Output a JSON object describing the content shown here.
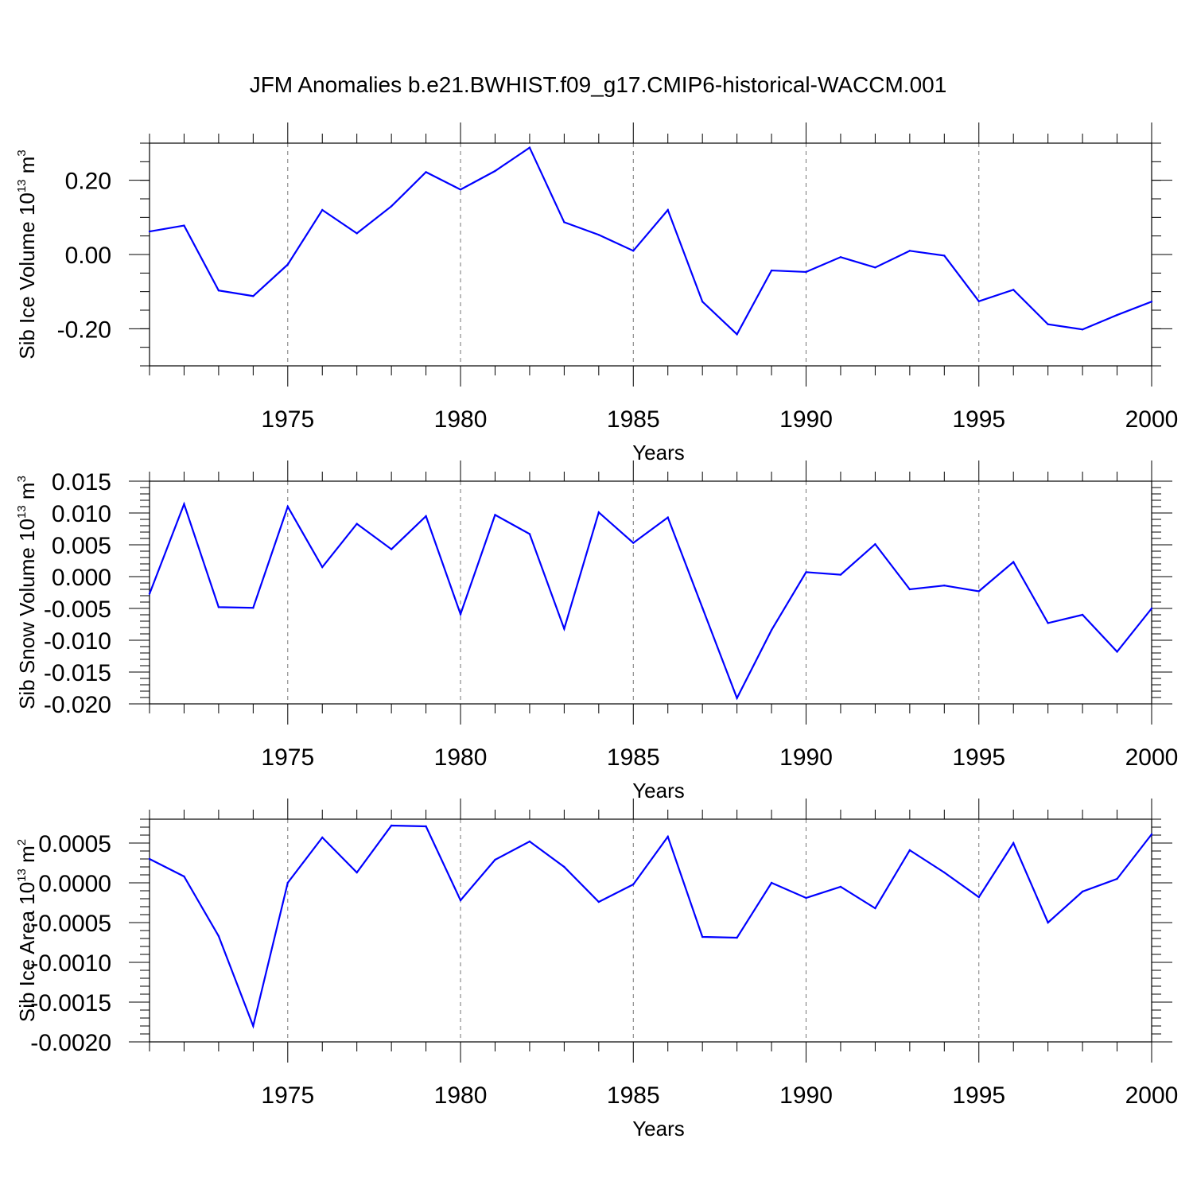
{
  "chart_data": {
    "type": "line",
    "title": "JFM Anomalies b.e21.BWHIST.f09_g17.CMIP6-historical-WACCM.001",
    "line_color": "#0000ff",
    "panels": [
      {
        "id": "ice-volume",
        "type": "line",
        "ylabel_main": "Sib Ice Volume 10",
        "ylabel_sup1": "13",
        "ylabel_mid": " m",
        "ylabel_sup2": "3",
        "xlabel": "Years",
        "xlim": [
          1971,
          2000
        ],
        "ylim": [
          -0.3,
          0.3
        ],
        "yticks": [
          -0.2,
          0.0,
          0.2
        ],
        "ytick_labels": [
          "-0.20",
          "0.00",
          "0.20"
        ],
        "ytick_minor_step": 0.05,
        "xticks": [
          1975,
          1980,
          1985,
          1990,
          1995,
          2000
        ],
        "xtick_labels": [
          "1975",
          "1980",
          "1985",
          "1990",
          "1995",
          "2000"
        ],
        "x": [
          1971,
          1972,
          1973,
          1974,
          1975,
          1976,
          1977,
          1978,
          1979,
          1980,
          1981,
          1982,
          1983,
          1984,
          1985,
          1986,
          1987,
          1988,
          1989,
          1990,
          1991,
          1992,
          1993,
          1994,
          1995,
          1996,
          1997,
          1998,
          1999,
          2000
        ],
        "y": [
          0.062,
          0.078,
          -0.097,
          -0.112,
          -0.027,
          0.12,
          0.057,
          0.13,
          0.222,
          0.175,
          0.225,
          0.288,
          0.087,
          0.053,
          0.01,
          0.12,
          -0.127,
          -0.215,
          -0.043,
          -0.047,
          -0.007,
          -0.035,
          0.01,
          -0.003,
          -0.126,
          -0.095,
          -0.188,
          -0.202,
          -0.163,
          -0.127
        ]
      },
      {
        "id": "snow-volume",
        "type": "line",
        "ylabel_main": "Sib Snow Volume 10",
        "ylabel_sup1": "13",
        "ylabel_mid": " m",
        "ylabel_sup2": "3",
        "xlabel": "Years",
        "xlim": [
          1971,
          2000
        ],
        "ylim": [
          -0.02,
          0.015
        ],
        "yticks": [
          -0.02,
          -0.015,
          -0.01,
          -0.005,
          0.0,
          0.005,
          0.01,
          0.015
        ],
        "ytick_labels": [
          "-0.020",
          "-0.015",
          "-0.010",
          "-0.005",
          "0.000",
          "0.005",
          "0.010",
          "0.015"
        ],
        "ytick_minor_step": 0.001,
        "xticks": [
          1975,
          1980,
          1985,
          1990,
          1995,
          2000
        ],
        "xtick_labels": [
          "1975",
          "1980",
          "1985",
          "1990",
          "1995",
          "2000"
        ],
        "x": [
          1971,
          1972,
          1973,
          1974,
          1975,
          1976,
          1977,
          1978,
          1979,
          1980,
          1981,
          1982,
          1983,
          1984,
          1985,
          1986,
          1987,
          1988,
          1989,
          1990,
          1991,
          1992,
          1993,
          1994,
          1995,
          1996,
          1997,
          1998,
          1999,
          2000
        ],
        "y": [
          -0.0027,
          0.0114,
          -0.0048,
          -0.0049,
          0.011,
          0.0015,
          0.0083,
          0.0043,
          0.0095,
          -0.0059,
          0.0097,
          0.0067,
          -0.0082,
          0.0101,
          0.0053,
          0.0093,
          -0.0049,
          -0.0191,
          -0.0084,
          0.0007,
          0.0003,
          0.0051,
          -0.002,
          -0.0014,
          -0.0023,
          0.0023,
          -0.0073,
          -0.006,
          -0.0118,
          -0.005
        ]
      },
      {
        "id": "ice-area",
        "type": "line",
        "ylabel_main": "Sib Ice Area 10",
        "ylabel_sup1": "13",
        "ylabel_mid": " m",
        "ylabel_sup2": "2",
        "xlabel": "Years",
        "xlim": [
          1971,
          2000
        ],
        "ylim": [
          -0.002,
          0.0008
        ],
        "yticks": [
          -0.002,
          -0.0015,
          -0.001,
          -0.0005,
          0.0,
          0.0005
        ],
        "ytick_labels": [
          "-0.0020",
          "-0.0015",
          "-0.0010",
          "-0.0005",
          "0.0000",
          "0.0005"
        ],
        "ytick_minor_step": 0.0001,
        "xticks": [
          1975,
          1980,
          1985,
          1990,
          1995,
          2000
        ],
        "xtick_labels": [
          "1975",
          "1980",
          "1985",
          "1990",
          "1995",
          "2000"
        ],
        "x": [
          1971,
          1972,
          1973,
          1974,
          1975,
          1976,
          1977,
          1978,
          1979,
          1980,
          1981,
          1982,
          1983,
          1984,
          1985,
          1986,
          1987,
          1988,
          1989,
          1990,
          1991,
          1992,
          1993,
          1994,
          1995,
          1996,
          1997,
          1998,
          1999,
          2000
        ],
        "y": [
          0.0003,
          8e-05,
          -0.00067,
          -0.0018,
          0.0,
          0.00057,
          0.00013,
          0.00072,
          0.00071,
          -0.00022,
          0.00029,
          0.00052,
          0.0002,
          -0.00024,
          -2e-05,
          0.00058,
          -0.00068,
          -0.00069,
          0.0,
          -0.00019,
          -5e-05,
          -0.00032,
          0.00041,
          0.00013,
          -0.00018,
          0.0005,
          -0.0005,
          -0.00011,
          5e-05,
          0.00061
        ]
      }
    ]
  }
}
